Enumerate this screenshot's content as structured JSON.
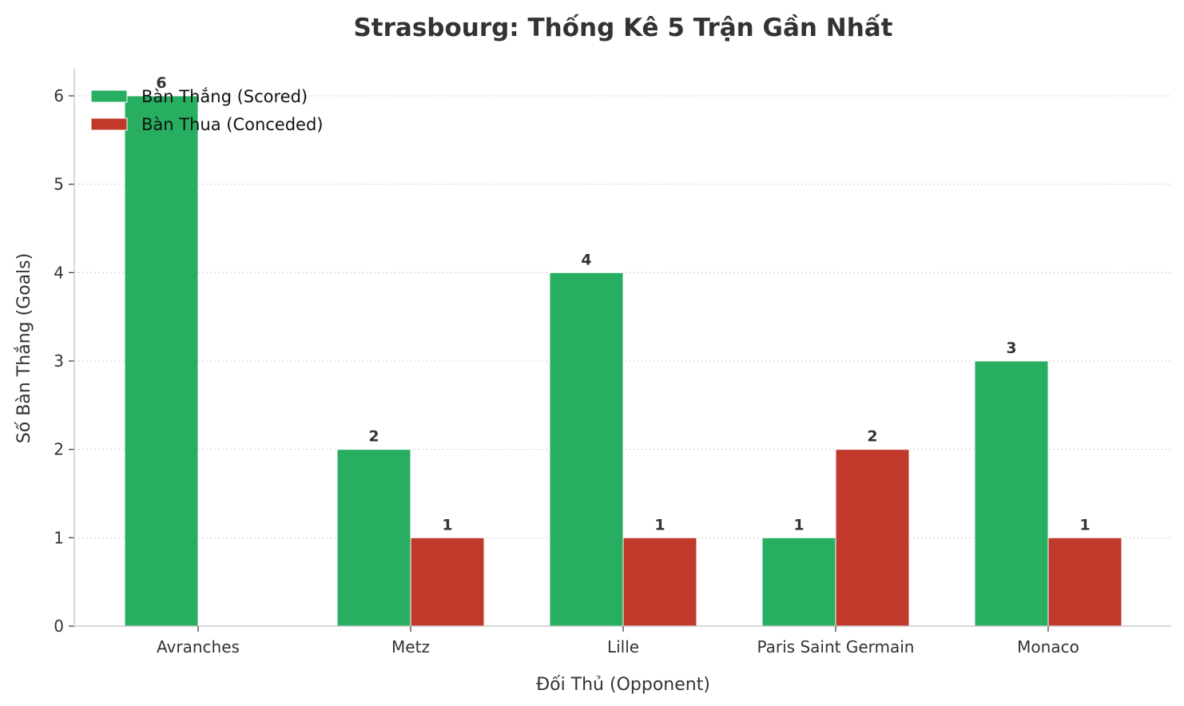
{
  "chart_data": {
    "type": "bar",
    "title": "Strasbourg: Thống Kê 5 Trận Gần Nhất",
    "xlabel": "Đối Thủ (Opponent)",
    "ylabel": "Số Bàn Thắng (Goals)",
    "categories": [
      "Avranches",
      "Metz",
      "Lille",
      "Paris Saint Germain",
      "Monaco"
    ],
    "series": [
      {
        "name": "Bàn Thắng (Scored)",
        "values": [
          6,
          2,
          4,
          1,
          3
        ],
        "color": "#27ae60"
      },
      {
        "name": "Bàn Thua (Conceded)",
        "values": [
          0,
          1,
          1,
          2,
          1
        ],
        "color": "#c0392b"
      }
    ],
    "ylim": [
      0,
      6.3
    ],
    "yticks": [
      0,
      1,
      2,
      3,
      4,
      5,
      6
    ],
    "grid": "y-dotted",
    "legend": "top-left"
  }
}
